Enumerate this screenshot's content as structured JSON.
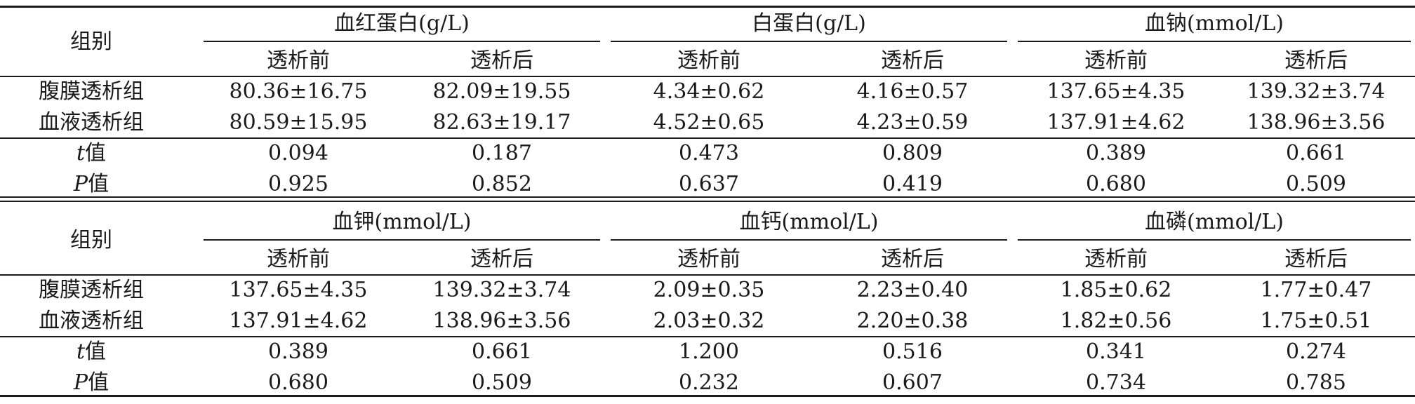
{
  "table": {
    "blocks": [
      {
        "group_label": "组别",
        "column_groups": [
          {
            "title": "血红蛋白(g/L)",
            "sub": [
              "透析前",
              "透析后"
            ]
          },
          {
            "title": "白蛋白(g/L)",
            "sub": [
              "透析前",
              "透析后"
            ]
          },
          {
            "title": "血钠(mmol/L)",
            "sub": [
              "透析前",
              "透析后"
            ]
          }
        ],
        "data_rows": [
          {
            "label": "腹膜透析组",
            "values": [
              "80.36±16.75",
              "82.09±19.55",
              "4.34±0.62",
              "4.16±0.57",
              "137.65±4.35",
              "139.32±3.74"
            ]
          },
          {
            "label": "血液透析组",
            "values": [
              "80.59±15.95",
              "82.63±19.17",
              "4.52±0.65",
              "4.23±0.59",
              "137.91±4.62",
              "138.96±3.56"
            ]
          }
        ],
        "stat_rows": [
          {
            "symbol": "t",
            "suffix": " 值",
            "values": [
              "0.094",
              "0.187",
              "0.473",
              "0.809",
              "0.389",
              "0.661"
            ]
          },
          {
            "symbol": "P",
            "suffix": " 值",
            "values": [
              "0.925",
              "0.852",
              "0.637",
              "0.419",
              "0.680",
              "0.509"
            ]
          }
        ]
      },
      {
        "group_label": "组别",
        "column_groups": [
          {
            "title": "血钾(mmol/L)",
            "sub": [
              "透析前",
              "透析后"
            ]
          },
          {
            "title": "血钙(mmol/L)",
            "sub": [
              "透析前",
              "透析后"
            ]
          },
          {
            "title": "血磷(mmol/L)",
            "sub": [
              "透析前",
              "透析后"
            ]
          }
        ],
        "data_rows": [
          {
            "label": "腹膜透析组",
            "values": [
              "137.65±4.35",
              "139.32±3.74",
              "2.09±0.35",
              "2.23±0.40",
              "1.85±0.62",
              "1.77±0.47"
            ]
          },
          {
            "label": "血液透析组",
            "values": [
              "137.91±4.62",
              "138.96±3.56",
              "2.03±0.32",
              "2.20±0.38",
              "1.82±0.56",
              "1.75±0.51"
            ]
          }
        ],
        "stat_rows": [
          {
            "symbol": "t",
            "suffix": " 值",
            "values": [
              "0.389",
              "0.661",
              "1.200",
              "0.516",
              "0.341",
              "0.274"
            ]
          },
          {
            "symbol": "P",
            "suffix": " 值",
            "values": [
              "0.680",
              "0.509",
              "0.232",
              "0.607",
              "0.734",
              "0.785"
            ]
          }
        ]
      }
    ]
  }
}
